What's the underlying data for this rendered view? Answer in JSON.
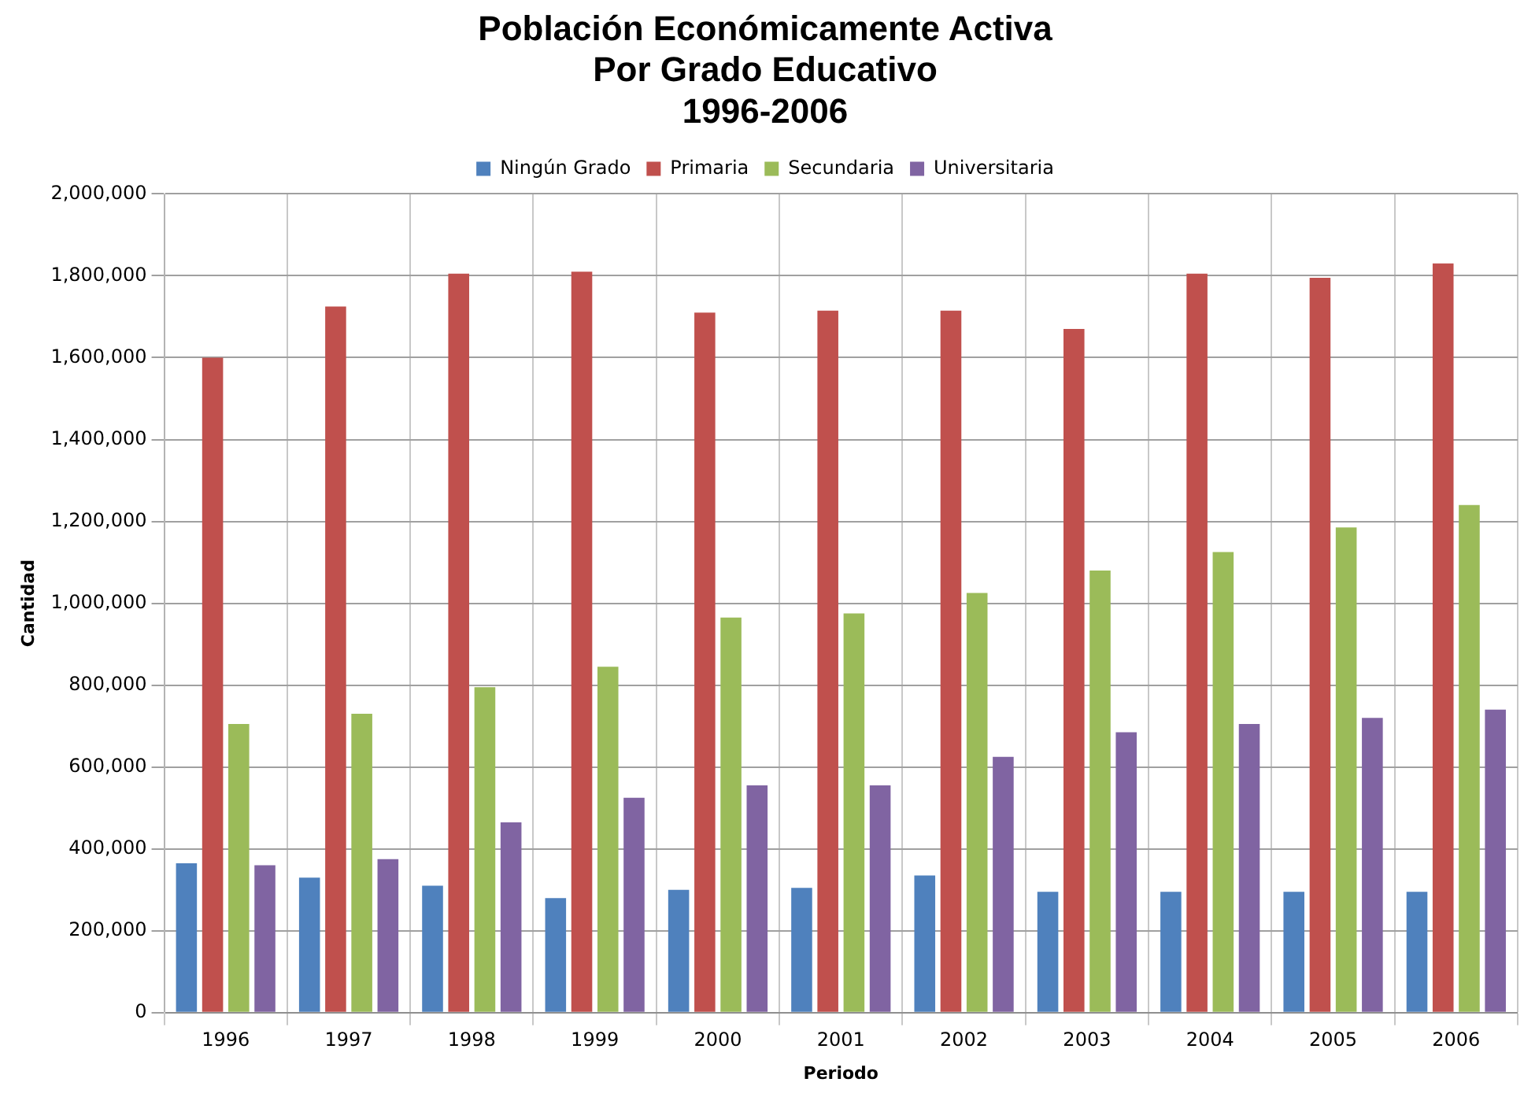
{
  "chart_data": {
    "type": "bar",
    "title": [
      "Población Económicamente Activa",
      "Por Grado Educativo",
      "1996-2006"
    ],
    "xlabel": "Periodo",
    "ylabel": "Cantidad",
    "categories": [
      "1996",
      "1997",
      "1998",
      "1999",
      "2000",
      "2001",
      "2002",
      "2003",
      "2004",
      "2005",
      "2006"
    ],
    "series": [
      {
        "name": "Ningún Grado",
        "color": "#4f81bd",
        "values": [
          365000,
          330000,
          310000,
          280000,
          300000,
          305000,
          335000,
          295000,
          295000,
          295000,
          295000
        ]
      },
      {
        "name": "Primaria",
        "color": "#c0504d",
        "values": [
          1600000,
          1725000,
          1805000,
          1810000,
          1710000,
          1715000,
          1715000,
          1670000,
          1805000,
          1795000,
          1830000
        ]
      },
      {
        "name": "Secundaria",
        "color": "#9bbb59",
        "values": [
          705000,
          730000,
          795000,
          845000,
          965000,
          975000,
          1025000,
          1080000,
          1125000,
          1185000,
          1240000
        ]
      },
      {
        "name": "Universitaria",
        "color": "#8064a2",
        "values": [
          360000,
          375000,
          465000,
          525000,
          555000,
          555000,
          625000,
          685000,
          705000,
          720000,
          740000
        ]
      }
    ],
    "ylim": [
      0,
      2000000
    ],
    "yticks": [
      0,
      {
        "value": 200000,
        "label": "200,000"
      },
      {
        "value": 400000,
        "label": "400,000"
      },
      {
        "value": 600000,
        "label": "600,000"
      },
      {
        "value": 800000,
        "label": "800,000"
      },
      {
        "value": 1000000,
        "label": "1,000,000"
      },
      {
        "value": 1200000,
        "label": "1,200,000"
      },
      {
        "value": 1400000,
        "label": "1,400,000"
      },
      {
        "value": 1600000,
        "label": "1,600,000"
      },
      {
        "value": 1800000,
        "label": "1,800,000"
      },
      {
        "value": 2000000,
        "label": "2,000,000"
      }
    ],
    "grid": true,
    "legend": "top"
  }
}
